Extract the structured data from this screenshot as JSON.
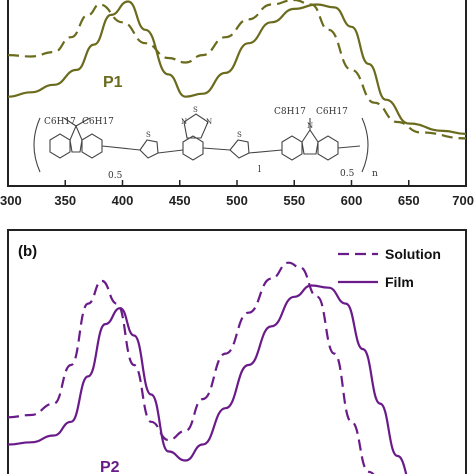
{
  "colors": {
    "p1": "#6b6b1e",
    "p2": "#6a1b8a",
    "axis": "#222222",
    "structure": "#444444"
  },
  "chart_data": [
    {
      "type": "line",
      "panel_label": "",
      "polymer_label": "P1",
      "x_ticks": [
        "300",
        "350",
        "400",
        "450",
        "500",
        "550",
        "600",
        "650",
        "700"
      ],
      "xlim": [
        300,
        700
      ],
      "ylim": [
        0,
        1.25
      ],
      "structure": {
        "labels": [
          "C6H17",
          "C6H17",
          "0.5",
          "C8H17",
          "C6H17",
          "0.5",
          "l",
          "n"
        ]
      },
      "series": [
        {
          "style": "dashed",
          "x": [
            300,
            320,
            340,
            355,
            370,
            380,
            400,
            420,
            440,
            455,
            470,
            490,
            510,
            530,
            550,
            565,
            580,
            600,
            620,
            640,
            660,
            700
          ],
          "y": [
            0.88,
            0.87,
            0.9,
            1.0,
            1.15,
            1.22,
            1.1,
            0.96,
            0.86,
            0.83,
            0.88,
            1.0,
            1.12,
            1.22,
            1.25,
            1.22,
            1.05,
            0.78,
            0.56,
            0.43,
            0.36,
            0.32
          ]
        },
        {
          "style": "solid",
          "x": [
            300,
            320,
            340,
            360,
            375,
            390,
            405,
            420,
            440,
            455,
            470,
            490,
            510,
            530,
            550,
            570,
            585,
            600,
            615,
            630,
            650,
            680,
            700
          ],
          "y": [
            0.6,
            0.63,
            0.68,
            0.78,
            0.95,
            1.15,
            1.24,
            1.05,
            0.75,
            0.6,
            0.62,
            0.76,
            0.96,
            1.1,
            1.19,
            1.22,
            1.2,
            1.07,
            0.82,
            0.58,
            0.42,
            0.37,
            0.35
          ]
        }
      ]
    },
    {
      "type": "line",
      "panel_label": "(b)",
      "polymer_label": "P2",
      "legend": [
        "Solution",
        "Film"
      ],
      "xlim": [
        300,
        700
      ],
      "ylim": [
        0,
        1.1
      ],
      "series": [
        {
          "name": "Solution",
          "style": "dashed",
          "x": [
            300,
            320,
            340,
            355,
            370,
            382,
            395,
            410,
            425,
            440,
            455,
            470,
            490,
            510,
            530,
            545,
            555,
            570,
            585,
            600,
            615,
            630
          ],
          "y": [
            0.32,
            0.33,
            0.38,
            0.55,
            0.82,
            0.92,
            0.82,
            0.55,
            0.3,
            0.22,
            0.26,
            0.4,
            0.6,
            0.78,
            0.93,
            1.0,
            0.98,
            0.85,
            0.6,
            0.3,
            0.08,
            0.0
          ]
        },
        {
          "name": "Film",
          "style": "solid",
          "x": [
            300,
            320,
            340,
            355,
            370,
            385,
            398,
            410,
            425,
            440,
            455,
            470,
            490,
            510,
            530,
            550,
            565,
            580,
            595,
            610,
            625,
            640,
            655
          ],
          "y": [
            0.2,
            0.21,
            0.24,
            0.3,
            0.5,
            0.73,
            0.8,
            0.68,
            0.42,
            0.17,
            0.13,
            0.2,
            0.36,
            0.55,
            0.72,
            0.85,
            0.9,
            0.89,
            0.82,
            0.62,
            0.38,
            0.15,
            0.0
          ]
        }
      ]
    }
  ]
}
